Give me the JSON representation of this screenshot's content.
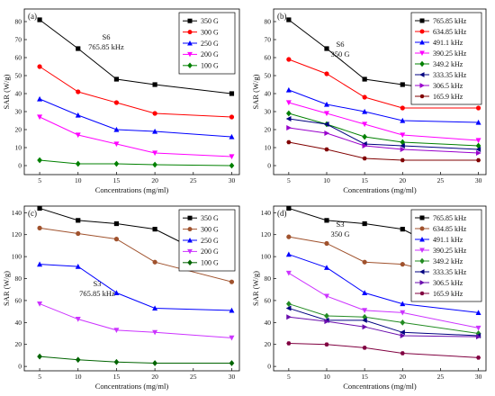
{
  "chart_data": [
    {
      "type": "line",
      "panel_label": "(a)",
      "annotation": [
        "S6",
        "765.85 kHz"
      ],
      "xlabel": "Concentrations (mg/ml)",
      "ylabel": "SAR (W/g)",
      "x": [
        5,
        10,
        15,
        20,
        30
      ],
      "xlim": [
        3,
        31
      ],
      "ylim": [
        -5,
        87
      ],
      "xticks": [
        "5",
        "10",
        "15",
        "20",
        "25",
        "30"
      ],
      "yticks": [
        "0",
        "10",
        "20",
        "30",
        "40",
        "50",
        "60",
        "70",
        "80"
      ],
      "legend_position": "top-right",
      "series": [
        {
          "name": "350 G",
          "color": "#000000",
          "marker": "square",
          "values": [
            81,
            65,
            48,
            45,
            40
          ]
        },
        {
          "name": "300 G",
          "color": "#ff0000",
          "marker": "circle",
          "values": [
            55,
            41,
            35,
            29,
            27
          ]
        },
        {
          "name": "250 G",
          "color": "#0000ff",
          "marker": "triangle-up",
          "values": [
            37,
            28,
            20,
            19,
            16
          ]
        },
        {
          "name": "200 G",
          "color": "#ff00ff",
          "marker": "triangle-down",
          "values": [
            27,
            17,
            12,
            7,
            5
          ]
        },
        {
          "name": "100 G",
          "color": "#008000",
          "marker": "diamond",
          "values": [
            3,
            1,
            1,
            0.5,
            0
          ]
        }
      ]
    },
    {
      "type": "line",
      "panel_label": "(b)",
      "annotation": [
        "S6",
        "350 G"
      ],
      "xlabel": "Concentrations (mg/ml)",
      "ylabel": "SAR (W/g)",
      "x": [
        5,
        10,
        15,
        20,
        30
      ],
      "xlim": [
        3,
        31
      ],
      "ylim": [
        -5,
        87
      ],
      "xticks": [
        "5",
        "10",
        "15",
        "20",
        "25",
        "30"
      ],
      "yticks": [
        "0",
        "10",
        "20",
        "30",
        "40",
        "50",
        "60",
        "70",
        "80"
      ],
      "legend_position": "top-right",
      "series": [
        {
          "name": "765.85 kHz",
          "color": "#000000",
          "marker": "square",
          "values": [
            81,
            65,
            48,
            45,
            40
          ]
        },
        {
          "name": "634.85 kHz",
          "color": "#ff0000",
          "marker": "circle",
          "values": [
            59,
            51,
            38,
            32,
            32
          ]
        },
        {
          "name": "491.1 kHz",
          "color": "#0000ff",
          "marker": "triangle-up",
          "values": [
            42,
            34,
            30,
            25,
            24
          ]
        },
        {
          "name": "390.25 kHz",
          "color": "#ff00ff",
          "marker": "triangle-down",
          "values": [
            35,
            29,
            23,
            17,
            14
          ]
        },
        {
          "name": "349.2 kHz",
          "color": "#008000",
          "marker": "diamond",
          "values": [
            29,
            23,
            16,
            13,
            11
          ]
        },
        {
          "name": "333.35 kHz",
          "color": "#000080",
          "marker": "triangle-left",
          "values": [
            26,
            23,
            12,
            11,
            9
          ]
        },
        {
          "name": "306.5 kHz",
          "color": "#9900cc",
          "marker": "triangle-right",
          "values": [
            21,
            18,
            11,
            9,
            7
          ]
        },
        {
          "name": "165.9 kHz",
          "color": "#800000",
          "marker": "hexagon",
          "values": [
            13,
            9,
            4,
            3,
            3
          ]
        }
      ]
    },
    {
      "type": "line",
      "panel_label": "(c)",
      "annotation": [
        "S3",
        "765.85 kHz"
      ],
      "xlabel": "Concentrations (mg/ml)",
      "ylabel": "SAR (W/g)",
      "x": [
        5,
        10,
        15,
        20,
        30
      ],
      "xlim": [
        3,
        31
      ],
      "ylim": [
        -4,
        146
      ],
      "xticks": [
        "5",
        "10",
        "15",
        "20",
        "25",
        "30"
      ],
      "yticks": [
        "0",
        "20",
        "40",
        "60",
        "80",
        "100",
        "120",
        "140"
      ],
      "legend_position": "top-right",
      "series": [
        {
          "name": "350 G",
          "color": "#000000",
          "marker": "square",
          "values": [
            144,
            133,
            130,
            125,
            90
          ]
        },
        {
          "name": "300 G",
          "color": "#a0522d",
          "marker": "circle",
          "values": [
            126,
            121,
            116,
            95,
            77
          ]
        },
        {
          "name": "250 G",
          "color": "#0000ff",
          "marker": "triangle-up",
          "values": [
            93,
            91,
            67,
            53,
            51
          ]
        },
        {
          "name": "200 G",
          "color": "#cc33ff",
          "marker": "triangle-down",
          "values": [
            57,
            43,
            33,
            31,
            26
          ]
        },
        {
          "name": "100 G",
          "color": "#006400",
          "marker": "diamond",
          "values": [
            9,
            6,
            4,
            3,
            3
          ]
        }
      ]
    },
    {
      "type": "line",
      "panel_label": "(d)",
      "annotation": [
        "S3",
        "350 G"
      ],
      "xlabel": "Concentrations (mg/ml)",
      "ylabel": "SAR (W/g)",
      "x": [
        5,
        10,
        15,
        20,
        30
      ],
      "xlim": [
        3,
        31
      ],
      "ylim": [
        -4,
        146
      ],
      "xticks": [
        "5",
        "10",
        "15",
        "20",
        "25",
        "30"
      ],
      "yticks": [
        "0",
        "20",
        "40",
        "60",
        "80",
        "100",
        "120",
        "140"
      ],
      "legend_position": "top-right",
      "series": [
        {
          "name": "765.85 kHz",
          "color": "#000000",
          "marker": "square",
          "values": [
            144,
            133,
            130,
            125,
            90
          ]
        },
        {
          "name": "634.85 kHz",
          "color": "#a0522d",
          "marker": "circle",
          "values": [
            118,
            112,
            95,
            93,
            77
          ]
        },
        {
          "name": "491.1 kHz",
          "color": "#0000ff",
          "marker": "triangle-up",
          "values": [
            102,
            90,
            67,
            57,
            49
          ]
        },
        {
          "name": "390.25 kHz",
          "color": "#cc33ff",
          "marker": "triangle-down",
          "values": [
            85,
            64,
            51,
            49,
            35
          ]
        },
        {
          "name": "349.2 kHz",
          "color": "#228b22",
          "marker": "diamond",
          "values": [
            57,
            46,
            45,
            40,
            30
          ]
        },
        {
          "name": "333.35 kHz",
          "color": "#000080",
          "marker": "triangle-left",
          "values": [
            53,
            42,
            42,
            31,
            28
          ]
        },
        {
          "name": "306.5 kHz",
          "color": "#6a0dad",
          "marker": "triangle-right",
          "values": [
            45,
            41,
            36,
            28,
            27
          ]
        },
        {
          "name": "165.9 kHz",
          "color": "#800040",
          "marker": "hexagon",
          "values": [
            21,
            20,
            17,
            12,
            8
          ]
        }
      ]
    }
  ]
}
